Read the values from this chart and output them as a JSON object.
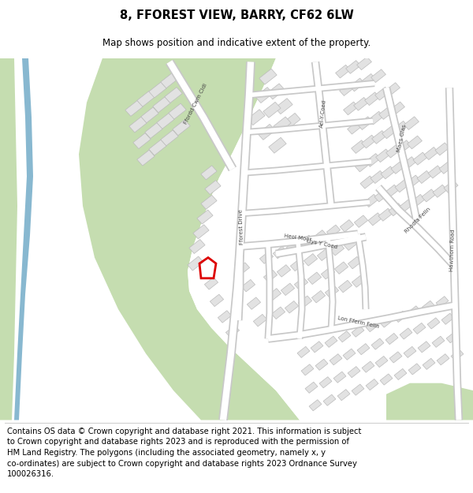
{
  "title": "8, FFOREST VIEW, BARRY, CF62 6LW",
  "subtitle": "Map shows position and indicative extent of the property.",
  "footer": "Contains OS data © Crown copyright and database right 2021. This information is subject\nto Crown copyright and database rights 2023 and is reproduced with the permission of\nHM Land Registry. The polygons (including the associated geometry, namely x, y\nco-ordinates) are subject to Crown copyright and database rights 2023 Ordnance Survey\n100026316.",
  "map_bg": "#6b9e6b",
  "white_area": "#ffffff",
  "building_fill": "#e2e2e2",
  "building_edge": "#bbbbbb",
  "green_dark": "#5e9060",
  "green_light": "#c5ddb0",
  "blue_water": "#88b8d0",
  "highlight_color": "#dd0000",
  "road_fill": "#ffffff",
  "road_outline": "#c8c8c8",
  "text_color": "#444444",
  "title_fontsize": 10.5,
  "subtitle_fontsize": 8.5,
  "footer_fontsize": 7.2
}
